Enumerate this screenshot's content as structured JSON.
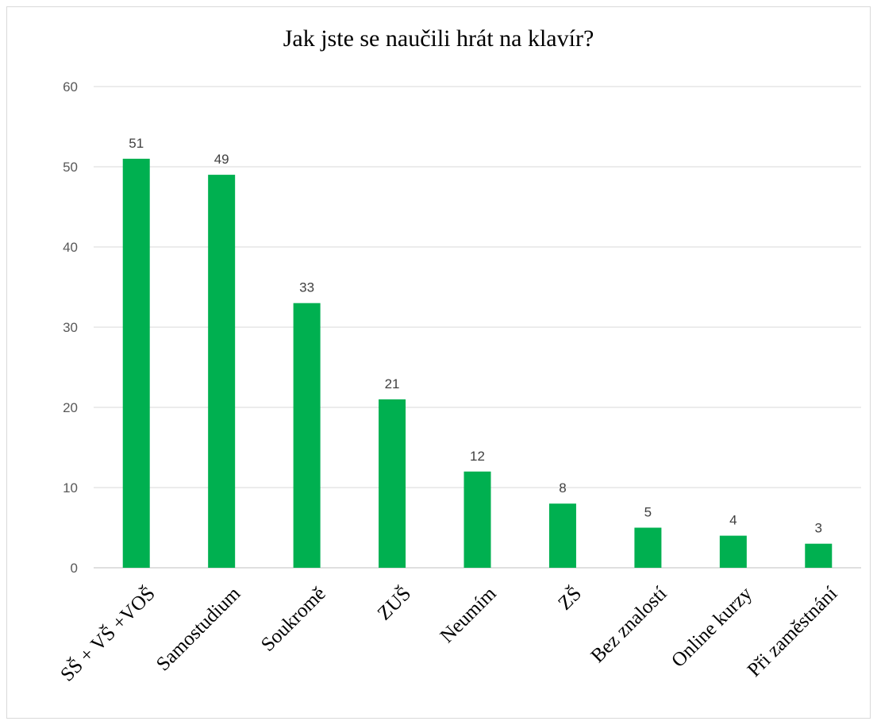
{
  "chart_data": {
    "type": "bar",
    "title": "Jak jste se naučili hrát na klavír?",
    "categories": [
      "SŠ + VŠ +VOŠ",
      "Samostudium",
      "Soukromě",
      "ZUŠ",
      "Neumím",
      "ZŠ",
      "Bez znalostí",
      "Online kurzy",
      "Při zaměstnání"
    ],
    "values": [
      51,
      49,
      33,
      21,
      12,
      8,
      5,
      4,
      3
    ],
    "ylim": [
      0,
      60
    ],
    "yticks": [
      0,
      10,
      20,
      30,
      40,
      50,
      60
    ],
    "grid": true,
    "data_labels": true,
    "xlabel": "",
    "ylabel": "",
    "colors": {
      "bar": "#00b050",
      "grid": "#d9d9d9",
      "tick_text": "#595959",
      "data_label_text": "#404040"
    }
  }
}
